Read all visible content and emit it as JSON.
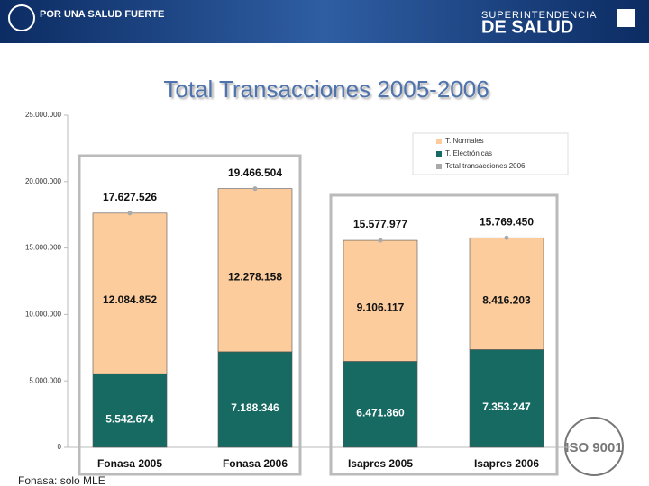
{
  "header": {
    "slogan": "POR UNA SALUD FUERTE",
    "brand_top": "SUPERINTENDENCIA",
    "brand_bottom": "DE SALUD"
  },
  "chart_data": {
    "type": "stacked_bar",
    "title": "Total Transacciones 2005-2006",
    "categories": [
      "Fonasa 2005",
      "Fonasa 2006",
      "Isapres 2005",
      "Isapres 2006"
    ],
    "series": [
      {
        "name": "T. Normales",
        "color": "#fccc9c",
        "values": [
          12084852,
          12278158,
          9106117,
          8416203
        ],
        "value_labels": [
          "12.084.852",
          "12.278.158",
          "9.106.117",
          "8.416.203"
        ]
      },
      {
        "name": "T. Electrónicas",
        "color": "#176a62",
        "values": [
          5542674,
          7188346,
          6471860,
          7353247
        ],
        "value_labels": [
          "5.542.674",
          "7.188.346",
          "6.471.860",
          "7.353.247"
        ]
      },
      {
        "name": "Total transacciones 2006",
        "color": "#aaaaaa",
        "type": "marker",
        "values": [
          17627526,
          19466504,
          15577977,
          15769450
        ],
        "value_labels": [
          "17.627.526",
          "19.466.504",
          "15.577.977",
          "15.769.450"
        ]
      }
    ],
    "ylim": [
      0,
      25000000
    ],
    "yticks": [
      0,
      {
        "value": 5000000,
        "label": "5.000.000"
      },
      {
        "value": 10000000,
        "label": "10.000.000"
      },
      {
        "value": 15000000,
        "label": "15.000.000"
      },
      {
        "value": 20000000,
        "label": "20.000.000"
      },
      {
        "value": 25000000,
        "label": "25.000.000"
      }
    ],
    "legend": "top-right"
  },
  "footer": {
    "note": "Fonasa: solo MLE",
    "logo": "ISO 9001"
  }
}
